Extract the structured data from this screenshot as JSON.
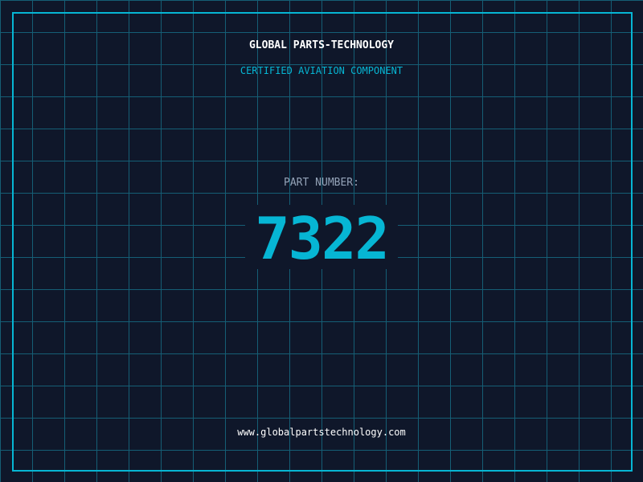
{
  "header": {
    "title": "GLOBAL PARTS-TECHNOLOGY",
    "subtitle": "CERTIFIED AVIATION COMPONENT"
  },
  "part": {
    "label": "PART NUMBER:",
    "number": "7322"
  },
  "footer": {
    "url": "www.globalpartstechnology.com"
  },
  "colors": {
    "background": "#0f172a",
    "accent": "#06b6d4",
    "grid": "#155e75"
  }
}
